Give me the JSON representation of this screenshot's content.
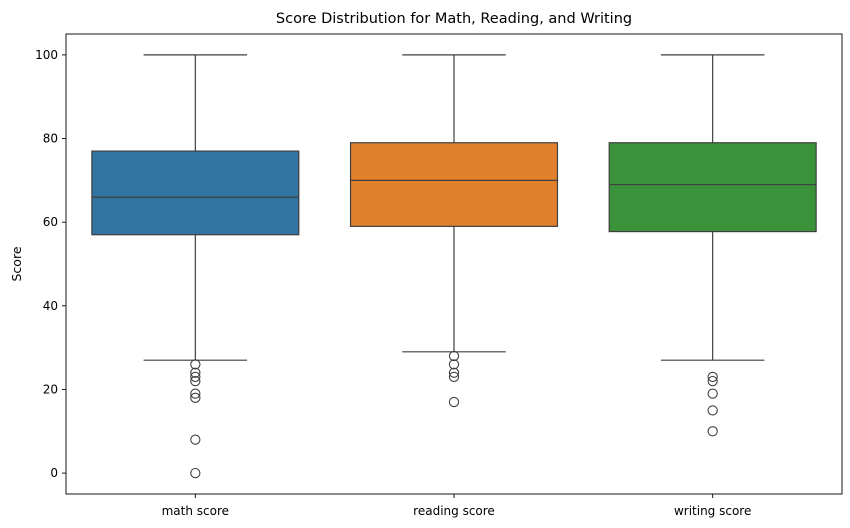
{
  "chart_data": {
    "type": "box",
    "title": "Score Distribution for Math, Reading, and Writing",
    "xlabel": "",
    "ylabel": "Score",
    "ylim": [
      -5,
      105
    ],
    "yticks": [
      0,
      20,
      40,
      60,
      80,
      100
    ],
    "grid": false,
    "categories": [
      "math score",
      "reading score",
      "writing score"
    ],
    "colors": [
      "#3274a1",
      "#e1812c",
      "#3a923a"
    ],
    "boxes": [
      {
        "category": "math score",
        "whisker_low": 27,
        "q1": 57,
        "median": 66,
        "q3": 77,
        "whisker_high": 100,
        "outliers": [
          26,
          24,
          23,
          22,
          19,
          18,
          8,
          0
        ]
      },
      {
        "category": "reading score",
        "whisker_low": 29,
        "q1": 59,
        "median": 70,
        "q3": 79,
        "whisker_high": 100,
        "outliers": [
          28,
          26,
          24,
          23,
          17
        ]
      },
      {
        "category": "writing score",
        "whisker_low": 27,
        "q1": 57.75,
        "median": 69,
        "q3": 79,
        "whisker_high": 100,
        "outliers": [
          23,
          22,
          19,
          15,
          10
        ]
      }
    ]
  }
}
